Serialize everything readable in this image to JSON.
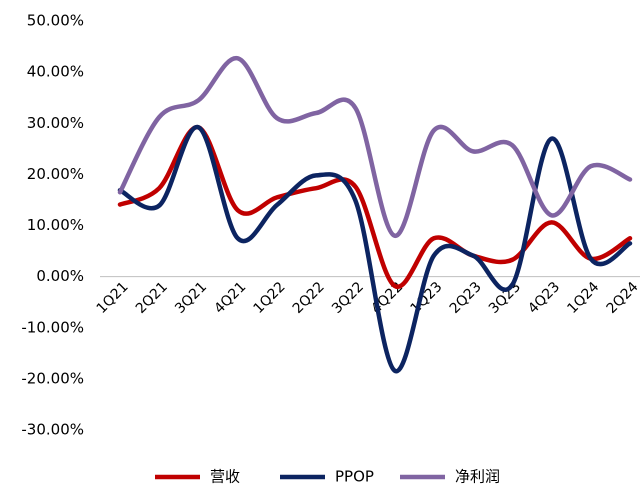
{
  "chart_data": {
    "type": "line",
    "categories": [
      "1Q21",
      "2Q21",
      "3Q21",
      "4Q21",
      "1Q22",
      "2Q22",
      "3Q22",
      "4Q22",
      "1Q23",
      "2Q23",
      "3Q23",
      "4Q23",
      "1Q24",
      "2Q24"
    ],
    "series": [
      {
        "name": "营收",
        "color": "#c00000",
        "values": [
          14.1,
          17.3,
          29.2,
          13,
          15.5,
          17.3,
          17.6,
          -1.8,
          7.5,
          4.1,
          3.3,
          10.6,
          3.5,
          7.5
        ]
      },
      {
        "name": "PPOP",
        "color": "#0c2461",
        "values": [
          16.9,
          13.9,
          29.2,
          7.5,
          14,
          19.8,
          14.9,
          -18.4,
          4.1,
          4.1,
          -1.6,
          27,
          3.5,
          6.5
        ]
      },
      {
        "name": "净利润",
        "color": "#8064a2",
        "values": [
          16.5,
          31.2,
          34.5,
          42.7,
          31,
          32,
          33,
          8,
          28.6,
          24.5,
          25.7,
          12,
          21.6,
          19
        ]
      }
    ],
    "ylim": [
      -30,
      50
    ],
    "yticks": [
      {
        "value": -30,
        "label": "-30.00%"
      },
      {
        "value": -20,
        "label": "-20.00%"
      },
      {
        "value": -10,
        "label": "-10.00%"
      },
      {
        "value": 0,
        "label": "0.00%"
      },
      {
        "value": 10,
        "label": "10.00%"
      },
      {
        "value": 20,
        "label": "20.00%"
      },
      {
        "value": 30,
        "label": "30.00%"
      },
      {
        "value": 40,
        "label": "40.00%"
      },
      {
        "value": 50,
        "label": "50.00%"
      }
    ],
    "grid": false,
    "legend": "bottom"
  }
}
